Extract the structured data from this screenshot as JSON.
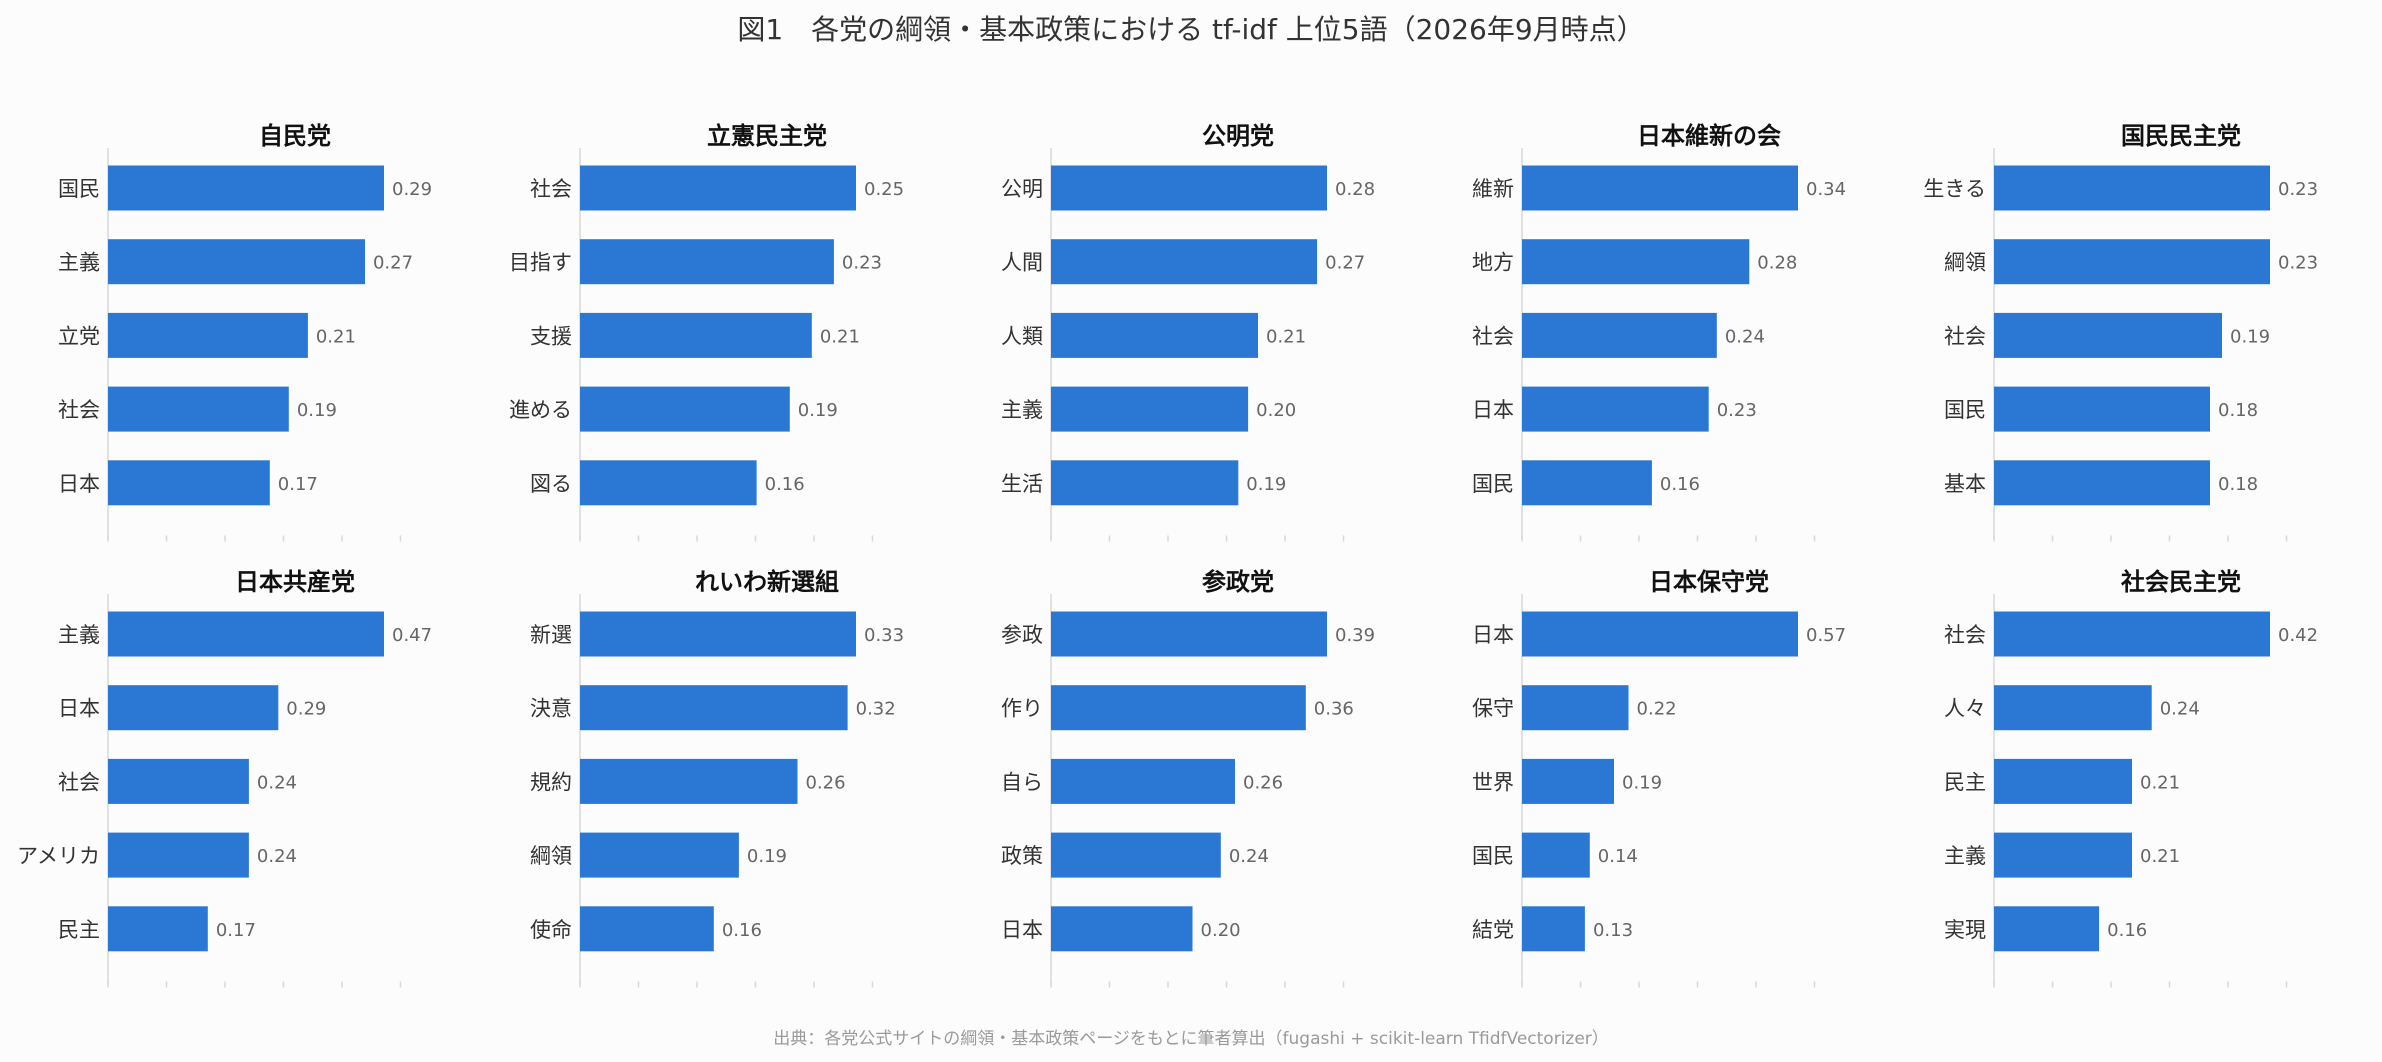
{
  "figure": {
    "title": "図1　各党の綱領・基本政策における tf-idf 上位5語（2026年9月時点）",
    "source": "出典：各党公式サイトの綱領・基本政策ページをもとに筆者算出（fugashi + scikit-learn TfidfVectorizer）",
    "bar_color": "#2b78d4"
  },
  "chart_data": [
    {
      "type": "bar",
      "orientation": "horizontal",
      "title": "自民党",
      "categories": [
        "国民",
        "主義",
        "立党",
        "社会",
        "日本"
      ],
      "values": [
        0.29,
        0.27,
        0.21,
        0.19,
        0.17
      ],
      "grid": false
    },
    {
      "type": "bar",
      "orientation": "horizontal",
      "title": "立憲民主党",
      "categories": [
        "社会",
        "目指す",
        "支援",
        "進める",
        "図る"
      ],
      "values": [
        0.25,
        0.23,
        0.21,
        0.19,
        0.16
      ],
      "grid": false
    },
    {
      "type": "bar",
      "orientation": "horizontal",
      "title": "公明党",
      "categories": [
        "公明",
        "人間",
        "人類",
        "主義",
        "生活"
      ],
      "values": [
        0.28,
        0.27,
        0.21,
        0.2,
        0.19
      ],
      "grid": false
    },
    {
      "type": "bar",
      "orientation": "horizontal",
      "title": "日本維新の会",
      "categories": [
        "維新",
        "地方",
        "社会",
        "日本",
        "国民"
      ],
      "values": [
        0.34,
        0.28,
        0.24,
        0.23,
        0.16
      ],
      "grid": false
    },
    {
      "type": "bar",
      "orientation": "horizontal",
      "title": "国民民主党",
      "categories": [
        "生きる",
        "綱領",
        "社会",
        "国民",
        "基本"
      ],
      "values": [
        0.23,
        0.23,
        0.19,
        0.18,
        0.18
      ],
      "grid": false
    },
    {
      "type": "bar",
      "orientation": "horizontal",
      "title": "日本共産党",
      "categories": [
        "主義",
        "日本",
        "社会",
        "アメリカ",
        "民主"
      ],
      "values": [
        0.47,
        0.29,
        0.24,
        0.24,
        0.17
      ],
      "grid": false
    },
    {
      "type": "bar",
      "orientation": "horizontal",
      "title": "れいわ新選組",
      "categories": [
        "新選",
        "決意",
        "規約",
        "綱領",
        "使命"
      ],
      "values": [
        0.33,
        0.32,
        0.26,
        0.19,
        0.16
      ],
      "grid": false
    },
    {
      "type": "bar",
      "orientation": "horizontal",
      "title": "参政党",
      "categories": [
        "参政",
        "作り",
        "自ら",
        "政策",
        "日本"
      ],
      "values": [
        0.39,
        0.36,
        0.26,
        0.24,
        0.2
      ],
      "grid": false
    },
    {
      "type": "bar",
      "orientation": "horizontal",
      "title": "日本保守党",
      "categories": [
        "日本",
        "保守",
        "世界",
        "国民",
        "結党"
      ],
      "values": [
        0.57,
        0.22,
        0.19,
        0.14,
        0.13
      ],
      "grid": false
    },
    {
      "type": "bar",
      "orientation": "horizontal",
      "title": "社会民主党",
      "categories": [
        "社会",
        "人々",
        "民主",
        "主義",
        "実現"
      ],
      "values": [
        0.42,
        0.24,
        0.21,
        0.21,
        0.16
      ],
      "grid": false
    }
  ]
}
